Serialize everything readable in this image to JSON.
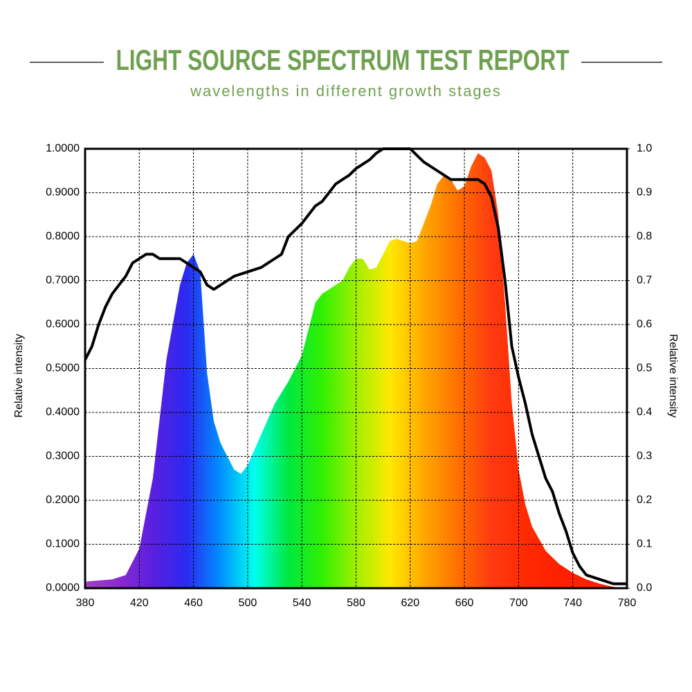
{
  "chart_data": {
    "type": "area",
    "title": "LIGHT SOURCE SPECTRUM TEST REPORT",
    "subtitle": "wavelengths in different growth stages",
    "title_color": "#6fa050",
    "ylabel": "Relative intensity",
    "y2label": "Relative intensity",
    "xlim": [
      380,
      780
    ],
    "xticks": [
      380,
      420,
      460,
      500,
      540,
      580,
      620,
      660,
      700,
      740,
      780
    ],
    "ylim": [
      0,
      1
    ],
    "yticks": [
      {
        "value": 0,
        "label": "0.0000"
      },
      {
        "value": 0.1,
        "label": "0.1000"
      },
      {
        "value": 0.2,
        "label": "0.2000"
      },
      {
        "value": 0.3,
        "label": "0.3000"
      },
      {
        "value": 0.4,
        "label": "0.4000"
      },
      {
        "value": 0.5,
        "label": "0.5000"
      },
      {
        "value": 0.6,
        "label": "0.6000"
      },
      {
        "value": 0.7,
        "label": "0.7000"
      },
      {
        "value": 0.8,
        "label": "0.8000"
      },
      {
        "value": 0.9,
        "label": "0.9000"
      },
      {
        "value": 1,
        "label": "1.0000"
      }
    ],
    "y2lim": [
      0,
      1
    ],
    "y2ticks": [
      {
        "value": 0,
        "label": "0.0"
      },
      0.1,
      0.2,
      0.3,
      0.4,
      0.5,
      0.6,
      0.7,
      0.8,
      0.9,
      {
        "value": 1,
        "label": "1.0"
      }
    ],
    "grid": true,
    "series": [
      {
        "fill": true,
        "color": [
          "#a040c0",
          "#8a2ad0",
          "#5a1fe0",
          "#2a2af0",
          "#0090ff",
          "#00ffee",
          "#00e840",
          "#30f000",
          "#a0f000",
          "#ffe800",
          "#ffa800",
          "#ff7000",
          "#ff3a10",
          "#ff2a00",
          "#ff2000",
          "#ff2000",
          "#ff2000"
        ],
        "x": [
          380,
          400,
          410,
          420,
          430,
          440,
          450,
          455,
          460,
          465,
          470,
          475,
          480,
          490,
          495,
          500,
          510,
          520,
          530,
          540,
          550,
          555,
          560,
          565,
          570,
          575,
          580,
          585,
          590,
          595,
          600,
          605,
          610,
          615,
          620,
          625,
          630,
          635,
          640,
          645,
          650,
          655,
          660,
          665,
          670,
          675,
          680,
          685,
          690,
          695,
          700,
          705,
          710,
          720,
          730,
          740,
          750,
          760,
          770,
          780
        ],
        "values": [
          0.015,
          0.02,
          0.03,
          0.09,
          0.25,
          0.52,
          0.69,
          0.74,
          0.76,
          0.72,
          0.49,
          0.38,
          0.33,
          0.27,
          0.26,
          0.28,
          0.35,
          0.42,
          0.47,
          0.53,
          0.65,
          0.67,
          0.68,
          0.69,
          0.7,
          0.73,
          0.75,
          0.75,
          0.725,
          0.73,
          0.76,
          0.79,
          0.795,
          0.79,
          0.785,
          0.79,
          0.83,
          0.87,
          0.92,
          0.94,
          0.93,
          0.905,
          0.915,
          0.96,
          0.99,
          0.98,
          0.95,
          0.85,
          0.65,
          0.42,
          0.27,
          0.19,
          0.14,
          0.085,
          0.055,
          0.035,
          0.02,
          0.01,
          0.003,
          0
        ]
      },
      {
        "axis": "y2",
        "color": "#000000",
        "x": [
          380,
          385,
          390,
          395,
          400,
          410,
          415,
          420,
          425,
          430,
          435,
          450,
          455,
          460,
          465,
          470,
          475,
          480,
          485,
          490,
          500,
          510,
          520,
          525,
          530,
          540,
          550,
          555,
          560,
          565,
          570,
          575,
          580,
          590,
          595,
          600,
          620,
          630,
          640,
          645,
          650,
          660,
          670,
          675,
          680,
          685,
          690,
          695,
          700,
          705,
          710,
          715,
          720,
          725,
          730,
          735,
          740,
          745,
          750,
          760,
          770,
          780
        ],
        "values": [
          0.52,
          0.55,
          0.6,
          0.64,
          0.67,
          0.71,
          0.74,
          0.75,
          0.76,
          0.76,
          0.75,
          0.75,
          0.74,
          0.73,
          0.72,
          0.69,
          0.68,
          0.69,
          0.7,
          0.71,
          0.72,
          0.73,
          0.75,
          0.76,
          0.8,
          0.83,
          0.87,
          0.88,
          0.9,
          0.92,
          0.93,
          0.94,
          0.955,
          0.975,
          0.99,
          1,
          1,
          0.97,
          0.95,
          0.94,
          0.93,
          0.93,
          0.93,
          0.92,
          0.89,
          0.82,
          0.7,
          0.55,
          0.48,
          0.42,
          0.35,
          0.3,
          0.25,
          0.22,
          0.17,
          0.13,
          0.08,
          0.05,
          0.03,
          0.02,
          0.01,
          0.01
        ]
      }
    ]
  }
}
